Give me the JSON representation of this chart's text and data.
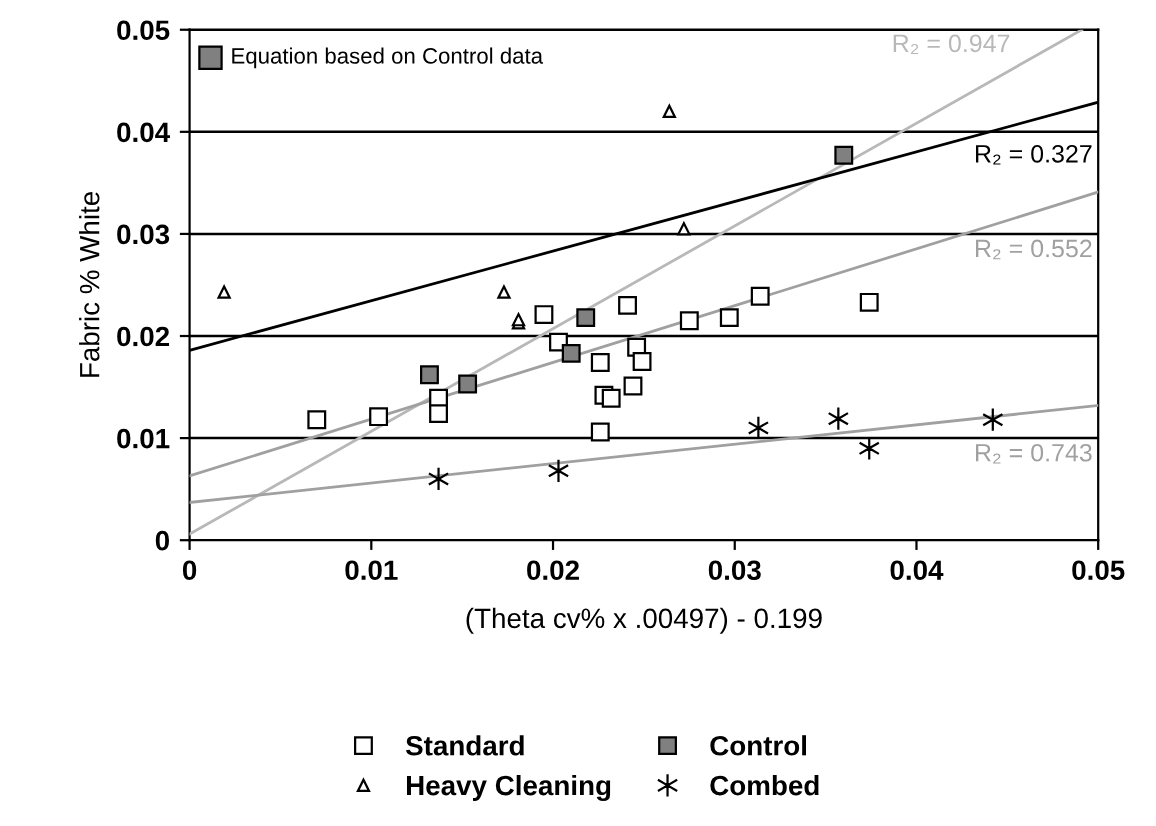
{
  "chart_data": {
    "type": "scatter",
    "xlabel": "(Theta cv% x .00497) - 0.199",
    "ylabel": "Fabric % White",
    "xlim": [
      0,
      0.05
    ],
    "ylim": [
      0,
      0.05
    ],
    "xticks": [
      {
        "value": 0,
        "label": "0"
      },
      0.01,
      0.02,
      0.03,
      0.04,
      0.05
    ],
    "yticks": [
      {
        "value": 0,
        "label": "0"
      },
      0.01,
      0.02,
      0.03,
      0.04,
      0.05
    ],
    "grid": "y",
    "legend": "bottom",
    "annotations": [
      "Equation based on Control data"
    ],
    "series": [
      {
        "name": "Standard",
        "color": "#ffffff",
        "marker": "square",
        "x": [
          0.007,
          0.0104,
          0.0137,
          0.0137,
          0.0195,
          0.0203,
          0.0226,
          0.0228,
          0.0232,
          0.0226,
          0.0241,
          0.0246,
          0.0249,
          0.0244,
          0.0275,
          0.0297,
          0.0314,
          0.0374
        ],
        "values": [
          0.0118,
          0.0121,
          0.0139,
          0.0124,
          0.0221,
          0.0194,
          0.0174,
          0.0142,
          0.0139,
          0.0106,
          0.023,
          0.0189,
          0.0175,
          0.0151,
          0.0215,
          0.0218,
          0.0239,
          0.0233
        ]
      },
      {
        "name": "Heavy Cleaning",
        "color": "#ffffff",
        "marker": "triangle",
        "x": [
          0.0019,
          0.0173,
          0.0181,
          0.0181,
          0.0264,
          0.0272
        ],
        "values": [
          0.0243,
          0.0243,
          0.0213,
          0.0216,
          0.042,
          0.0305
        ]
      },
      {
        "name": "Control",
        "color": "#808080",
        "marker": "square",
        "x": [
          0.0132,
          0.0153,
          0.021,
          0.0218,
          0.036
        ],
        "values": [
          0.0162,
          0.0153,
          0.0183,
          0.0218,
          0.0377
        ]
      },
      {
        "name": "Combed",
        "color": "#000000",
        "marker": "cross",
        "x": [
          0.0137,
          0.0203,
          0.0313,
          0.0357,
          0.0374,
          0.0442
        ],
        "values": [
          0.006,
          0.0068,
          0.011,
          0.0119,
          0.009,
          0.0118
        ]
      },
      {
        "name": "R₂ = 0.947",
        "type": "line",
        "color": "#b8b8b8",
        "x": [
          0,
          0.0491
        ],
        "values": [
          0.0006,
          0.05
        ]
      },
      {
        "name": "R₂ = 0.327",
        "type": "line",
        "color": "#000000",
        "x": [
          0,
          0.05
        ],
        "values": [
          0.0186,
          0.0429
        ]
      },
      {
        "name": "R₂ = 0.552",
        "type": "line",
        "color": "#a0a0a0",
        "x": [
          0,
          0.05
        ],
        "values": [
          0.0063,
          0.0341
        ]
      },
      {
        "name": "R₂ = 0.743",
        "type": "line",
        "color": "#a0a0a0",
        "x": [
          0,
          0.05
        ],
        "values": [
          0.0037,
          0.0132
        ]
      }
    ]
  }
}
